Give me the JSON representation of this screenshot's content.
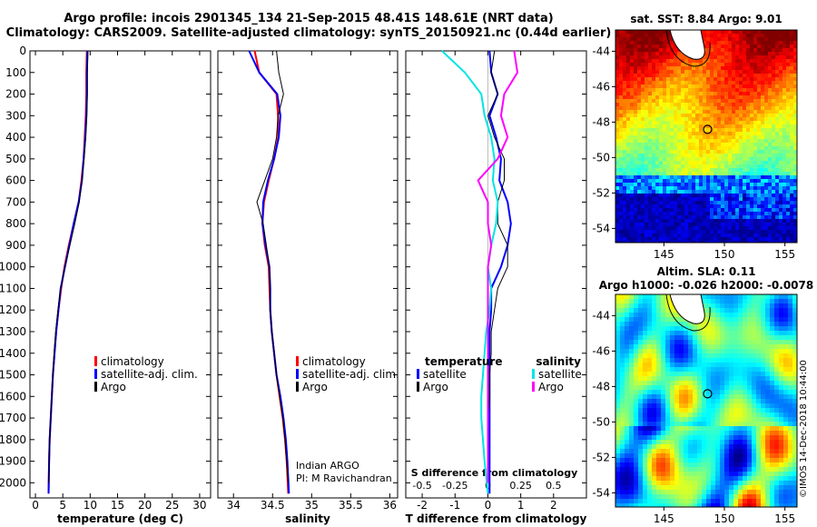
{
  "header": {
    "line1": "Argo profile: incois 2901345_134 21-Sep-2015 48.41S 148.61E (NRT data)",
    "line2": "Climatology: CARS2009. Satellite-adjusted climatology: synTS_20150921.nc (0.44d earlier)"
  },
  "credit": "©IMOS 14-Dec-2018 10:44:00",
  "colors": {
    "climatology": "#ff0000",
    "satellite": "#0000ff",
    "argo": "#000000",
    "satellite_s": "#00e5e5",
    "argo_s": "#ff00ff"
  },
  "chart_data": [
    {
      "type": "line",
      "id": "temperature",
      "xlabel": "temperature (deg C)",
      "xlim": [
        -1,
        32
      ],
      "ylim": [
        2070,
        0
      ],
      "xticks": [
        "0",
        "5",
        "10",
        "15",
        "20",
        "25",
        "30"
      ],
      "yticks": [
        "0",
        "100",
        "200",
        "300",
        "400",
        "500",
        "600",
        "700",
        "800",
        "900",
        "1000",
        "1100",
        "1200",
        "1300",
        "1400",
        "1500",
        "1600",
        "1700",
        "1800",
        "1900",
        "2000"
      ],
      "legend": [
        "climatology",
        "satellite-adj. clim.",
        "Argo"
      ],
      "series": [
        {
          "name": "climatology",
          "color": "#ff0000",
          "width": 2,
          "x": [
            9.4,
            9.3,
            9.3,
            9.2,
            9.0,
            8.8,
            8.4,
            7.9,
            7.0,
            6.1,
            5.3,
            4.7,
            4.2,
            3.8,
            3.5,
            3.2,
            3.0,
            2.8,
            2.6,
            2.5,
            2.4
          ],
          "y": [
            0,
            100,
            200,
            300,
            400,
            500,
            600,
            700,
            800,
            900,
            1000,
            1100,
            1200,
            1300,
            1400,
            1500,
            1600,
            1700,
            1800,
            1900,
            2050
          ]
        },
        {
          "name": "satellite-adj. clim.",
          "color": "#0000ff",
          "width": 2,
          "x": [
            9.5,
            9.4,
            9.4,
            9.3,
            9.1,
            8.8,
            8.5,
            7.9,
            7.0,
            6.2,
            5.4,
            4.6,
            4.2,
            3.8,
            3.5,
            3.2,
            3.0,
            2.8,
            2.6,
            2.5,
            2.4
          ],
          "y": [
            0,
            100,
            200,
            300,
            400,
            500,
            600,
            700,
            800,
            900,
            1000,
            1100,
            1200,
            1300,
            1400,
            1500,
            1600,
            1700,
            1800,
            1900,
            2050
          ]
        },
        {
          "name": "Argo",
          "color": "#000000",
          "width": 1,
          "x": [
            9.6,
            9.5,
            9.5,
            9.4,
            9.2,
            8.9,
            8.5,
            8.0,
            7.2,
            6.3,
            5.4,
            4.6,
            4.1,
            3.7,
            3.4,
            3.2,
            3.0,
            2.8,
            2.6,
            2.5,
            2.4
          ],
          "y": [
            0,
            100,
            200,
            300,
            400,
            500,
            600,
            700,
            800,
            900,
            1000,
            1100,
            1200,
            1300,
            1400,
            1500,
            1600,
            1700,
            1800,
            1900,
            2000
          ]
        }
      ]
    },
    {
      "type": "line",
      "id": "salinity",
      "xlabel": "salinity",
      "xlim": [
        33.8,
        36.1
      ],
      "ylim": [
        2070,
        0
      ],
      "xticks": [
        "34",
        "34.5",
        "35",
        "35.5",
        "36"
      ],
      "legend": [
        "climatology",
        "satellite-adj. clim.",
        "Argo"
      ],
      "annotation": [
        "Indian ARGO",
        "PI: M Ravichandran"
      ],
      "series": [
        {
          "name": "climatology",
          "color": "#ff0000",
          "width": 2,
          "x": [
            34.27,
            34.33,
            34.55,
            34.57,
            34.57,
            34.52,
            34.45,
            34.39,
            34.37,
            34.4,
            34.45,
            34.46,
            34.47,
            34.49,
            34.52,
            34.55,
            34.59,
            34.63,
            34.66,
            34.68,
            34.7
          ],
          "y": [
            0,
            100,
            200,
            300,
            400,
            500,
            600,
            700,
            800,
            900,
            1000,
            1100,
            1200,
            1300,
            1400,
            1500,
            1600,
            1700,
            1800,
            1900,
            2050
          ]
        },
        {
          "name": "satellite-adj. clim.",
          "color": "#0000ff",
          "width": 2,
          "x": [
            34.2,
            34.33,
            34.56,
            34.6,
            34.58,
            34.52,
            34.44,
            34.38,
            34.37,
            34.41,
            34.46,
            34.47,
            34.47,
            34.49,
            34.52,
            34.55,
            34.6,
            34.64,
            34.67,
            34.69,
            34.71
          ],
          "y": [
            0,
            100,
            200,
            300,
            400,
            500,
            600,
            700,
            800,
            900,
            1000,
            1100,
            1200,
            1300,
            1400,
            1500,
            1600,
            1700,
            1800,
            1900,
            2050
          ]
        },
        {
          "name": "Argo",
          "color": "#000000",
          "width": 1,
          "x": [
            34.55,
            34.58,
            34.64,
            34.57,
            34.55,
            34.5,
            34.4,
            34.3,
            34.38,
            34.42,
            34.46,
            34.47,
            34.47,
            34.49,
            34.52,
            34.55,
            34.59,
            34.63,
            34.66,
            34.68,
            34.7
          ],
          "y": [
            0,
            100,
            200,
            300,
            400,
            500,
            600,
            700,
            800,
            900,
            1000,
            1100,
            1200,
            1300,
            1400,
            1500,
            1600,
            1700,
            1800,
            1900,
            2000
          ]
        }
      ]
    },
    {
      "type": "line",
      "id": "difference",
      "xlabel": "T difference from climatology",
      "xlabel_top": "S difference from climatology",
      "xlim": [
        -2.5,
        3.0
      ],
      "ylim": [
        2070,
        0
      ],
      "xticks": [
        "-2",
        "-1",
        "0",
        "1",
        "2"
      ],
      "xticks_s": [
        "-0.5",
        "-0.25",
        "0",
        "0.25",
        "0.5"
      ],
      "legend_t_title": "temperature",
      "legend_s_title": "salinity",
      "legend_t": [
        "satellite",
        "Argo"
      ],
      "legend_s": [
        "satellite",
        "Argo"
      ],
      "series": [
        {
          "name": "satellite",
          "group": "temperature",
          "color": "#0000ff",
          "width": 2,
          "x": [
            0.05,
            0.1,
            0.3,
            0.05,
            0.25,
            0.4,
            0.35,
            0.6,
            0.7,
            0.6,
            0.4,
            0.1,
            0.1,
            0.05,
            0.05,
            0.05,
            0.05,
            0.05,
            0.05,
            0.05,
            0.05
          ],
          "y": [
            0,
            100,
            200,
            300,
            400,
            500,
            600,
            700,
            800,
            900,
            1000,
            1100,
            1200,
            1300,
            1400,
            1500,
            1600,
            1700,
            1800,
            1900,
            2050
          ]
        },
        {
          "name": "Argo",
          "group": "temperature",
          "color": "#000000",
          "width": 1,
          "x": [
            0.2,
            0.1,
            0.3,
            0.0,
            0.2,
            0.5,
            0.5,
            0.3,
            0.3,
            0.6,
            0.6,
            0.3,
            0.2,
            0.1,
            0.1,
            0.05,
            0.05,
            0.0,
            0.0,
            0.0,
            0.0
          ],
          "y": [
            0,
            100,
            200,
            300,
            400,
            500,
            600,
            700,
            800,
            900,
            1000,
            1100,
            1200,
            1300,
            1400,
            1500,
            1600,
            1700,
            1800,
            1900,
            2000
          ]
        },
        {
          "name": "satellite",
          "group": "salinity",
          "color": "#00e5e5",
          "width": 2,
          "x": [
            -1.4,
            -0.7,
            -0.2,
            -0.1,
            0.1,
            0.2,
            0.15,
            0.3,
            0.25,
            0.1,
            0.0,
            0.1,
            0.05,
            -0.05,
            -0.1,
            -0.15,
            -0.2,
            -0.2,
            -0.15,
            -0.1,
            0.0
          ],
          "y": [
            0,
            100,
            200,
            300,
            400,
            500,
            600,
            700,
            800,
            900,
            1000,
            1100,
            1200,
            1300,
            1400,
            1500,
            1600,
            1700,
            1800,
            1900,
            2050
          ]
        },
        {
          "name": "Argo",
          "group": "salinity",
          "color": "#ff00ff",
          "width": 2,
          "x": [
            0.8,
            0.9,
            0.5,
            0.4,
            0.6,
            0.3,
            -0.3,
            0.0,
            0.0,
            0.1,
            0.0,
            0.0,
            0.0,
            0.0,
            0.0,
            0.0,
            0.0,
            0.0,
            0.0,
            0.0,
            0.0
          ],
          "y": [
            0,
            100,
            200,
            300,
            400,
            500,
            600,
            700,
            800,
            900,
            1000,
            1100,
            1200,
            1300,
            1400,
            1500,
            1600,
            1700,
            1800,
            1900,
            2000
          ]
        }
      ]
    },
    {
      "type": "heatmap",
      "id": "sst-map",
      "title": "sat. SST: 8.84 Argo: 9.01",
      "xlim": [
        141,
        156
      ],
      "ylim": [
        -54.8,
        -42.8
      ],
      "xticks": [
        "145",
        "150",
        "155"
      ],
      "yticks": [
        "-44",
        "-46",
        "-48",
        "-50",
        "-52",
        "-54"
      ],
      "profile_location": {
        "lon": 148.61,
        "lat": -48.41
      }
    },
    {
      "type": "heatmap",
      "id": "sla-map",
      "title": "Altim. SLA: 0.11",
      "subtitle": "Argo h1000: -0.026 h2000: -0.0078",
      "xlim": [
        141,
        156
      ],
      "ylim": [
        -54.8,
        -42.8
      ],
      "xticks": [
        "145",
        "150",
        "155"
      ],
      "yticks": [
        "-44",
        "-46",
        "-48",
        "-50",
        "-52",
        "-54"
      ],
      "profile_location": {
        "lon": 148.61,
        "lat": -48.41
      }
    }
  ]
}
